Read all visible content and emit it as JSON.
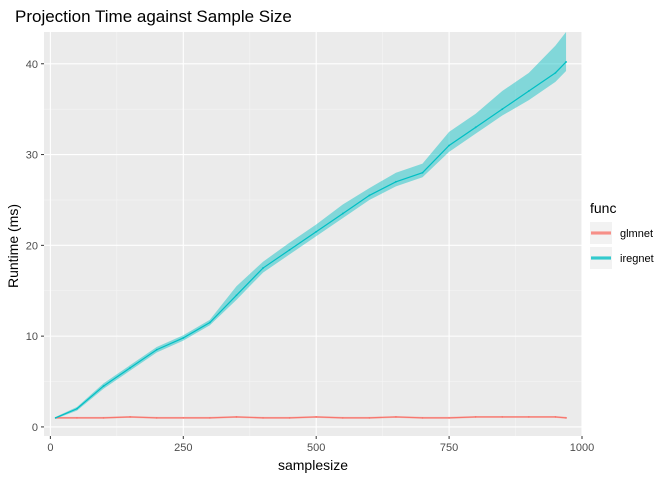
{
  "chart_data": {
    "type": "line",
    "title": "Projection Time against Sample Size",
    "xlabel": "samplesize",
    "ylabel": "Runtime (ms)",
    "xlim": [
      -12,
      1000
    ],
    "ylim": [
      -1,
      43.5
    ],
    "xticks": [
      0,
      250,
      500,
      750,
      1000
    ],
    "xtick_labels": [
      "0",
      "250",
      "500",
      "750",
      "1000"
    ],
    "yticks": [
      0,
      10,
      20,
      30,
      40
    ],
    "ytick_labels": [
      "0",
      "10",
      "20",
      "30",
      "40"
    ],
    "legend": {
      "title": "func",
      "position": "right"
    },
    "x": [
      10,
      50,
      100,
      150,
      200,
      250,
      300,
      350,
      400,
      450,
      500,
      550,
      600,
      650,
      700,
      750,
      800,
      850,
      900,
      950,
      970
    ],
    "series": [
      {
        "name": "glmnet",
        "color": "#F8766D",
        "values": [
          1.0,
          1.0,
          1.0,
          1.1,
          1.0,
          1.0,
          1.0,
          1.1,
          1.0,
          1.0,
          1.1,
          1.0,
          1.0,
          1.1,
          1.0,
          1.0,
          1.1,
          1.1,
          1.1,
          1.1,
          1.0
        ],
        "lower": [
          0.9,
          0.9,
          0.9,
          1.0,
          0.9,
          0.9,
          0.9,
          1.0,
          0.9,
          0.9,
          1.0,
          0.9,
          0.9,
          1.0,
          0.9,
          0.9,
          1.0,
          1.0,
          1.0,
          1.0,
          0.9
        ],
        "upper": [
          1.1,
          1.1,
          1.1,
          1.2,
          1.1,
          1.1,
          1.1,
          1.2,
          1.1,
          1.1,
          1.2,
          1.1,
          1.1,
          1.2,
          1.1,
          1.1,
          1.2,
          1.2,
          1.2,
          1.2,
          1.1
        ]
      },
      {
        "name": "iregnet",
        "color": "#00BFC4",
        "values": [
          1.0,
          2.0,
          4.5,
          6.5,
          8.5,
          9.8,
          11.5,
          14.5,
          17.5,
          19.5,
          21.5,
          23.5,
          25.5,
          27.0,
          28.0,
          31.0,
          33.0,
          35.0,
          37.0,
          39.0,
          40.2
        ],
        "lower": [
          0.9,
          1.8,
          4.2,
          6.2,
          8.2,
          9.5,
          11.2,
          14.0,
          17.0,
          19.0,
          21.0,
          23.0,
          25.0,
          26.5,
          27.5,
          30.3,
          32.3,
          34.3,
          36.0,
          38.0,
          39.2
        ],
        "upper": [
          1.1,
          2.2,
          4.8,
          6.8,
          8.8,
          10.1,
          11.8,
          15.5,
          18.2,
          20.3,
          22.3,
          24.5,
          26.3,
          28.0,
          29.0,
          32.5,
          34.5,
          37.0,
          39.0,
          42.0,
          43.5
        ]
      }
    ]
  }
}
